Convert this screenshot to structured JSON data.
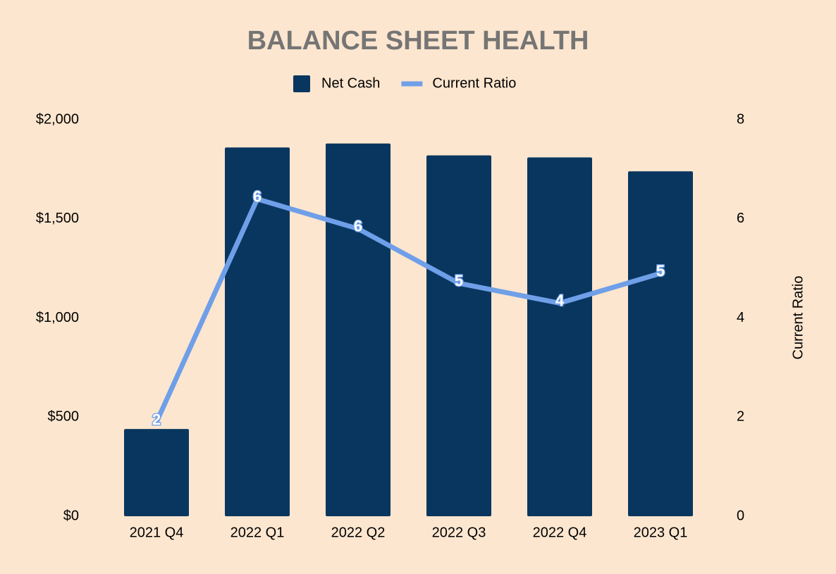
{
  "chart_data": {
    "type": "bar-line",
    "title": "BALANCE SHEET HEALTH",
    "categories": [
      "2021 Q4",
      "2022 Q1",
      "2022 Q2",
      "2022 Q3",
      "2022 Q4",
      "2023 Q1"
    ],
    "series": [
      {
        "name": "Net Cash",
        "type": "bar",
        "color": "#08365f",
        "values": [
          440,
          1860,
          1880,
          1820,
          1810,
          1740
        ]
      },
      {
        "name": "Current Ratio",
        "type": "line",
        "axis": "y2",
        "color": "#6f9fe8",
        "values": [
          1.9,
          6.4,
          5.8,
          4.7,
          4.3,
          4.9
        ],
        "value_labels": [
          "2",
          "6",
          "6",
          "5",
          "4",
          "5"
        ]
      }
    ],
    "ylim": [
      0,
      2000
    ],
    "yticks": [
      {
        "value": 0,
        "label": "$0"
      },
      {
        "value": 500,
        "label": "$500"
      },
      {
        "value": 1000,
        "label": "$1,000"
      },
      {
        "value": 1500,
        "label": "$1,500"
      },
      {
        "value": 2000,
        "label": "$2,000"
      }
    ],
    "y2lim": [
      0,
      8
    ],
    "y2ticks": [
      0,
      2,
      4,
      6,
      8
    ],
    "y2label": "Current Ratio",
    "legend": "top",
    "grid": false
  }
}
